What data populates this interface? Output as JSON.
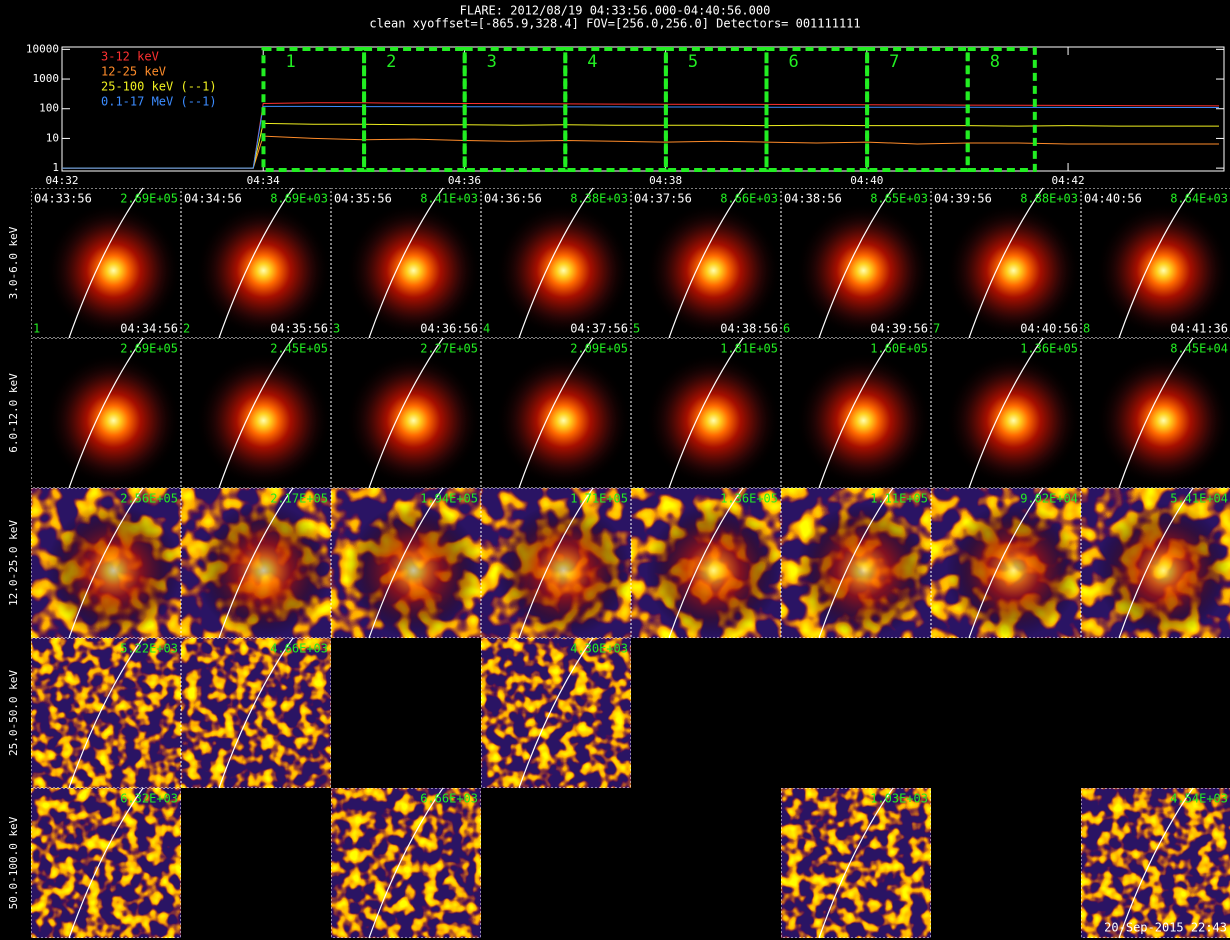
{
  "chart_data": {
    "type": "line",
    "title": "FLARE: 2012/08/19 04:33:56.000-04:40:56.000",
    "subtitle": "clean   xyoffset=[-865.9,328.4]   FOV=[256.0,256.0]   Detectors= 001111111",
    "log_y": true,
    "x": [
      272,
      273,
      273.9,
      274,
      274.5,
      275,
      275.5,
      276,
      276.5,
      277,
      277.5,
      278,
      278.5,
      279,
      279.5,
      280,
      280.5,
      281,
      281.5,
      282,
      282.5,
      283,
      283.5
    ],
    "series": [
      {
        "name": "3-12 keV",
        "color": "#ff3030",
        "values": [
          1,
          1,
          1,
          150,
          160,
          158,
          152,
          150,
          148,
          145,
          143,
          142,
          140,
          140,
          138,
          136,
          135,
          133,
          132,
          130,
          128,
          126,
          125
        ]
      },
      {
        "name": "12-25 keV",
        "color": "#ff8c2a",
        "values": [
          1,
          1,
          1,
          12,
          10,
          9,
          9.5,
          8.5,
          8,
          8.5,
          8,
          7.5,
          8,
          7.5,
          7,
          7.5,
          6.5,
          7,
          7,
          6.5,
          6.5,
          6.5,
          6.5
        ]
      },
      {
        "name": "25-100 keV (--1)",
        "color": "#f0f020",
        "values": [
          1,
          1,
          1,
          32,
          30,
          30,
          29,
          29,
          28,
          29,
          28,
          28,
          28,
          27,
          28,
          27,
          27,
          27,
          26,
          27,
          26,
          26,
          26
        ]
      },
      {
        "name": "0.1-17 MeV (--1)",
        "color": "#3c8cff",
        "values": [
          1,
          1,
          1,
          120,
          120,
          118,
          118,
          116,
          116,
          115,
          115,
          114,
          114,
          113,
          113,
          112,
          112,
          112,
          111,
          111,
          110,
          110,
          110
        ]
      }
    ],
    "xlim": [
      272,
      283.55
    ],
    "xticks": [
      {
        "value": 272,
        "label": "04:32"
      },
      {
        "value": 274,
        "label": "04:34"
      },
      {
        "value": 276,
        "label": "04:36"
      },
      {
        "value": 278,
        "label": "04:38"
      },
      {
        "value": 280,
        "label": "04:40"
      },
      {
        "value": 282,
        "label": "04:42"
      }
    ],
    "ylim": [
      0.8,
      12000
    ],
    "yticks": [
      1,
      10,
      100,
      1000,
      10000
    ],
    "interval_color": "#22ee22",
    "intervals": [
      {
        "label": "1",
        "start": 273.933,
        "end": 274.933
      },
      {
        "label": "2",
        "start": 274.933,
        "end": 275.933
      },
      {
        "label": "3",
        "start": 275.933,
        "end": 276.933
      },
      {
        "label": "4",
        "start": 276.933,
        "end": 277.933
      },
      {
        "label": "5",
        "start": 277.933,
        "end": 278.933
      },
      {
        "label": "6",
        "start": 278.933,
        "end": 279.933
      },
      {
        "label": "7",
        "start": 279.933,
        "end": 280.933
      },
      {
        "label": "8",
        "start": 280.933,
        "end": 281.6
      }
    ]
  },
  "image_grid": {
    "start_times": [
      "04:33:56",
      "04:34:56",
      "04:35:56",
      "04:36:56",
      "04:37:56",
      "04:38:56",
      "04:39:56",
      "04:40:56"
    ],
    "end_times": [
      "04:34:56",
      "04:35:56",
      "04:36:56",
      "04:37:56",
      "04:38:56",
      "04:39:56",
      "04:40:56",
      "04:41:36"
    ],
    "numbers": [
      "1",
      "2",
      "3",
      "4",
      "5",
      "6",
      "7",
      "8"
    ],
    "rows": [
      {
        "label": "3.0-6.0 keV",
        "peaks": [
          "2.69E+05",
          "8.69E+03",
          "8.41E+03",
          "8.38E+03",
          "8.66E+03",
          "8.65E+03",
          "8.88E+03",
          "8.64E+03"
        ]
      },
      {
        "label": "6.0-12.0 keV",
        "peaks": [
          "2.69E+05",
          "2.45E+05",
          "2.27E+05",
          "2.09E+05",
          "1.81E+05",
          "1.60E+05",
          "1.36E+05",
          "8.45E+04"
        ]
      },
      {
        "label": "12.0-25.0 keV",
        "peaks": [
          "2.56E+05",
          "2.17E+05",
          "1.94E+05",
          "1.71E+05",
          "1.36E+05",
          "1.11E+05",
          "9.02E+04",
          "5.41E+04"
        ]
      },
      {
        "label": "25.0-50.0 keV",
        "peaks": [
          "5.22E+03",
          "4.66E+03",
          null,
          "4.30E+03",
          null,
          null,
          null,
          null
        ]
      },
      {
        "label": "50.0-100.0 keV",
        "peaks": [
          "6.32E+03",
          null,
          "6.66E+03",
          null,
          null,
          "1.03E+03",
          null,
          "4.54E+03"
        ]
      }
    ],
    "timestamp": "20-Sep-2015 22:43"
  }
}
